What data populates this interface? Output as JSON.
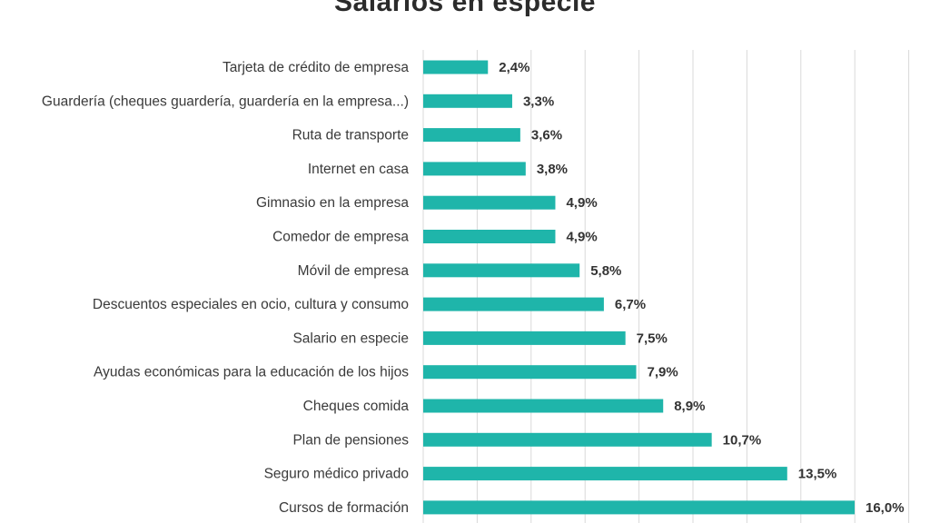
{
  "chart_data": {
    "type": "bar",
    "orientation": "horizontal",
    "title": "Salarios en especie",
    "xlabel": "",
    "ylabel": "",
    "xlim": [
      0,
      16.0
    ],
    "grid": true,
    "legend": "none",
    "bar_color": "#1fb5aa",
    "categories": [
      "Tarjeta de crédito de empresa",
      "Guardería (cheques guardería, guardería en la empresa...)",
      "Ruta de transporte",
      "Internet en casa",
      "Gimnasio en la empresa",
      "Comedor de empresa",
      "Móvil de empresa",
      "Descuentos especiales en ocio, cultura y consumo",
      "Salario en especie",
      "Ayudas económicas para la educación de los hijos",
      "Cheques comida",
      "Plan de pensiones",
      "Seguro médico privado",
      "Cursos de formación"
    ],
    "values": [
      2.4,
      3.3,
      3.6,
      3.8,
      4.9,
      4.9,
      5.8,
      6.7,
      7.5,
      7.9,
      8.9,
      10.7,
      13.5,
      16.0
    ],
    "value_labels": [
      "2,4%",
      "3,3%",
      "3,6%",
      "3,8%",
      "4,9%",
      "4,9%",
      "5,8%",
      "6,7%",
      "7,5%",
      "7,9%",
      "8,9%",
      "10,7%",
      "13,5%",
      "16,0%"
    ]
  }
}
